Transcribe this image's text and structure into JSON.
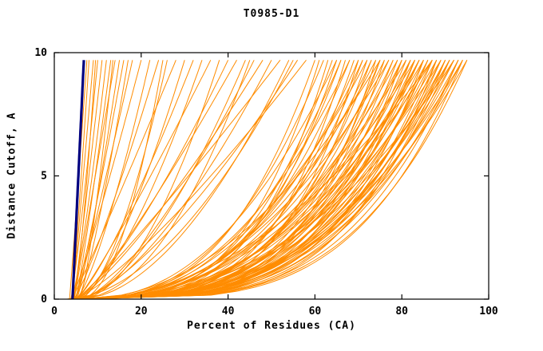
{
  "chart_data": {
    "type": "line",
    "title": "T0985-D1",
    "xlabel": "Percent of Residues (CA)",
    "ylabel": "Distance Cutoff, A",
    "xlim": [
      0,
      100
    ],
    "ylim": [
      0,
      10
    ],
    "x_ticks": [
      0,
      20,
      40,
      60,
      80,
      100
    ],
    "y_ticks": [
      0,
      5,
      10
    ],
    "grid": false,
    "legend": "none",
    "colors": {
      "models": "#FF8C00",
      "reference": "#000080",
      "axis": "#000000",
      "background": "#FFFFFF"
    },
    "y_max_data": 9.7,
    "curve_model": "x(y) = x0 + (x_end - x0) * (y / y_max_data) ^ shape ; each curve listed as [x0, x_end, shape]",
    "reference_curve": {
      "x0": 4.2,
      "x_end": 6.8,
      "shape": 1.0,
      "width": 3.2
    },
    "model_curves": [
      [
        3.5,
        7.5,
        0.95
      ],
      [
        4,
        8,
        0.9
      ],
      [
        4.2,
        9,
        1.0
      ],
      [
        3.8,
        10,
        0.85
      ],
      [
        4.5,
        11,
        0.95
      ],
      [
        4,
        12,
        0.8
      ],
      [
        5,
        13,
        0.9
      ],
      [
        4.6,
        14,
        1.0
      ],
      [
        5.2,
        15,
        0.85
      ],
      [
        4.8,
        16,
        0.9
      ],
      [
        5.5,
        17,
        0.8
      ],
      [
        5,
        18,
        0.95
      ],
      [
        4.3,
        9.5,
        0.7
      ],
      [
        5.8,
        13.5,
        0.75
      ],
      [
        4,
        20,
        0.9
      ],
      [
        5,
        22,
        0.75
      ],
      [
        4.5,
        24,
        0.85
      ],
      [
        5.5,
        26,
        0.6
      ],
      [
        4,
        28,
        0.95
      ],
      [
        6,
        30,
        0.7
      ],
      [
        5,
        32,
        0.8
      ],
      [
        4.8,
        34,
        0.65
      ],
      [
        5.2,
        36,
        0.9
      ],
      [
        6,
        38,
        0.55
      ],
      [
        4.5,
        40,
        0.75
      ],
      [
        5.5,
        42,
        0.85
      ],
      [
        5,
        44,
        0.6
      ],
      [
        6.2,
        46,
        0.7
      ],
      [
        4.8,
        48,
        0.8
      ],
      [
        5.6,
        50,
        0.65
      ],
      [
        5,
        52,
        0.9
      ],
      [
        6,
        54,
        0.55
      ],
      [
        5.4,
        56,
        0.7
      ],
      [
        4.6,
        58,
        0.8
      ],
      [
        5.8,
        25,
        0.5
      ],
      [
        5.2,
        45,
        0.5
      ],
      [
        4,
        60,
        0.35
      ],
      [
        5,
        61,
        0.3
      ],
      [
        6,
        62,
        0.4
      ],
      [
        4.5,
        63,
        0.28
      ],
      [
        5.5,
        64,
        0.33
      ],
      [
        6.5,
        65,
        0.45
      ],
      [
        4,
        65,
        0.3
      ],
      [
        5,
        66,
        0.38
      ],
      [
        6,
        67,
        0.27
      ],
      [
        4.8,
        68,
        0.35
      ],
      [
        5.6,
        68,
        0.42
      ],
      [
        6.4,
        69,
        0.3
      ],
      [
        4.2,
        70,
        0.36
      ],
      [
        5.2,
        70,
        0.26
      ],
      [
        6.2,
        71,
        0.4
      ],
      [
        4.6,
        71,
        0.32
      ],
      [
        5.8,
        72,
        0.28
      ],
      [
        6.6,
        72,
        0.44
      ],
      [
        4.4,
        73,
        0.3
      ],
      [
        5.4,
        73,
        0.37
      ],
      [
        6.8,
        74,
        0.25
      ],
      [
        4.9,
        74,
        0.41
      ],
      [
        5.9,
        75,
        0.33
      ],
      [
        6.9,
        75,
        0.29
      ],
      [
        4.3,
        76,
        0.38
      ],
      [
        5.3,
        76,
        0.27
      ],
      [
        6.3,
        77,
        0.35
      ],
      [
        4.7,
        77,
        0.43
      ],
      [
        5.7,
        78,
        0.3
      ],
      [
        6.7,
        78,
        0.36
      ],
      [
        4.1,
        79,
        0.28
      ],
      [
        5.1,
        79,
        0.4
      ],
      [
        6.1,
        80,
        0.32
      ],
      [
        4.5,
        80,
        0.26
      ],
      [
        5.5,
        80,
        0.37
      ],
      [
        6.5,
        81,
        0.3
      ],
      [
        7,
        81,
        0.44
      ],
      [
        4.8,
        82,
        0.33
      ],
      [
        5.8,
        82,
        0.27
      ],
      [
        6.8,
        82,
        0.39
      ],
      [
        4.2,
        83,
        0.31
      ],
      [
        5.2,
        83,
        0.42
      ],
      [
        6.2,
        83,
        0.28
      ],
      [
        7.2,
        84,
        0.35
      ],
      [
        4.6,
        84,
        0.3
      ],
      [
        5.6,
        84,
        0.38
      ],
      [
        6.6,
        85,
        0.26
      ],
      [
        7.6,
        85,
        0.33
      ],
      [
        4.4,
        85,
        0.4
      ],
      [
        5.4,
        86,
        0.29
      ],
      [
        6.4,
        86,
        0.36
      ],
      [
        7.4,
        86,
        0.31
      ],
      [
        4.8,
        87,
        0.27
      ],
      [
        5.8,
        87,
        0.42
      ],
      [
        6.8,
        87,
        0.34
      ],
      [
        7.8,
        88,
        0.3
      ],
      [
        5,
        88,
        0.37
      ],
      [
        6,
        88,
        0.25
      ],
      [
        7,
        89,
        0.33
      ],
      [
        5.5,
        89,
        0.4
      ],
      [
        6.5,
        89,
        0.29
      ],
      [
        7.5,
        90,
        0.35
      ],
      [
        5.2,
        90,
        0.31
      ],
      [
        6.2,
        90,
        0.27
      ],
      [
        7.2,
        91,
        0.38
      ],
      [
        5.8,
        91,
        0.33
      ],
      [
        6.8,
        91,
        0.29
      ],
      [
        7.8,
        92,
        0.36
      ],
      [
        5.4,
        92,
        0.31
      ],
      [
        6.4,
        92,
        0.42
      ],
      [
        7.4,
        93,
        0.28
      ],
      [
        5.9,
        93,
        0.34
      ],
      [
        6.9,
        93,
        0.3
      ],
      [
        7.9,
        94,
        0.37
      ],
      [
        6.1,
        94,
        0.32
      ],
      [
        7.1,
        95,
        0.28
      ],
      [
        6.6,
        95,
        0.35
      ],
      [
        5.6,
        94,
        0.26
      ],
      [
        6.3,
        87,
        0.5
      ],
      [
        5.7,
        75,
        0.48
      ],
      [
        2.8,
        66,
        0.32
      ],
      [
        3.2,
        84,
        0.34
      ],
      [
        3,
        55,
        0.55
      ],
      [
        3.4,
        90,
        0.3
      ]
    ]
  }
}
